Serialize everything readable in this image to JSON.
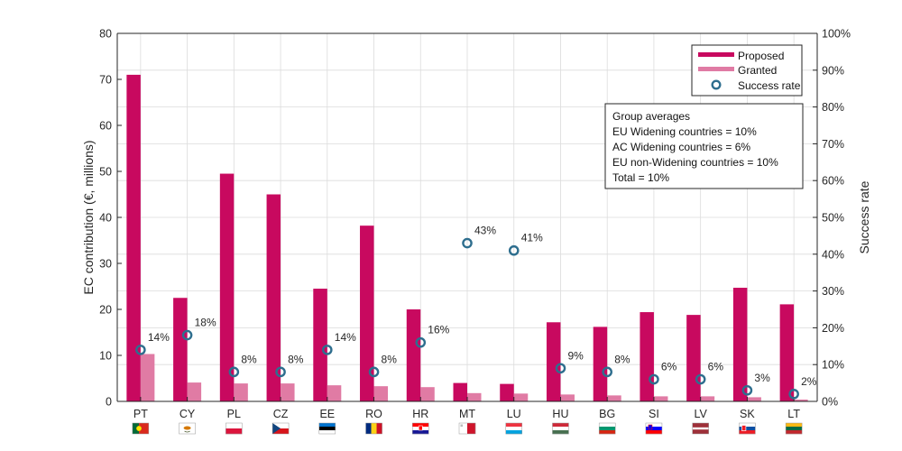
{
  "colors": {
    "proposed": "#C8095F",
    "granted": "#E07BA4",
    "success": "#2E6E8E",
    "grid": "#dcdcdc",
    "axis": "#262626"
  },
  "legend": {
    "proposed": "Proposed",
    "granted": "Granted",
    "success": "Success rate"
  },
  "info_box": {
    "title": "Group averages",
    "lines": [
      "EU Widening countries = 10%",
      "AC Widening countries = 6%",
      "EU non-Widening countries = 10%",
      "Total = 10%"
    ]
  },
  "flag_icons": [
    "portugal-flag-icon",
    "cyprus-flag-icon",
    "poland-flag-icon",
    "czechia-flag-icon",
    "estonia-flag-icon",
    "romania-flag-icon",
    "croatia-flag-icon",
    "malta-flag-icon",
    "luxembourg-flag-icon",
    "hungary-flag-icon",
    "bulgaria-flag-icon",
    "slovenia-flag-icon",
    "latvia-flag-icon",
    "slovakia-flag-icon",
    "lithuania-flag-icon"
  ],
  "chart_data": {
    "type": "bar",
    "categories": [
      "PT",
      "CY",
      "PL",
      "CZ",
      "EE",
      "RO",
      "HR",
      "MT",
      "LU",
      "HU",
      "BG",
      "SI",
      "LV",
      "SK",
      "LT"
    ],
    "series": [
      {
        "name": "Proposed",
        "values": [
          71.0,
          22.5,
          49.5,
          45.0,
          24.5,
          38.2,
          20.0,
          4.0,
          3.8,
          17.2,
          16.2,
          19.4,
          18.8,
          24.7,
          21.1
        ]
      },
      {
        "name": "Granted",
        "values": [
          10.3,
          4.1,
          3.9,
          3.9,
          3.5,
          3.3,
          3.1,
          1.8,
          1.7,
          1.5,
          1.3,
          1.1,
          1.1,
          0.9,
          0.4
        ]
      },
      {
        "name": "Success rate",
        "type": "scatter",
        "axis": "right",
        "values": [
          14,
          18,
          8,
          8,
          14,
          8,
          16,
          43,
          41,
          9,
          8,
          6,
          6,
          3,
          2
        ]
      }
    ],
    "rate_labels": [
      "14%",
      "18%",
      "8%",
      "8%",
      "14%",
      "8%",
      "16%",
      "43%",
      "41%",
      "9%",
      "8%",
      "6%",
      "6%",
      "3%",
      "2%"
    ],
    "ylabel": "EC contribution (€, millions)",
    "y2label": "Success rate",
    "ylim": [
      0,
      80
    ],
    "y2lim": [
      0,
      100
    ],
    "yticks": [
      0,
      10,
      20,
      30,
      40,
      50,
      60,
      70,
      80
    ],
    "y2ticks": [
      "0%",
      "10%",
      "20%",
      "30%",
      "40%",
      "50%",
      "60%",
      "70%",
      "80%",
      "90%",
      "100%"
    ],
    "grid": true,
    "legend_position": "top-right"
  }
}
